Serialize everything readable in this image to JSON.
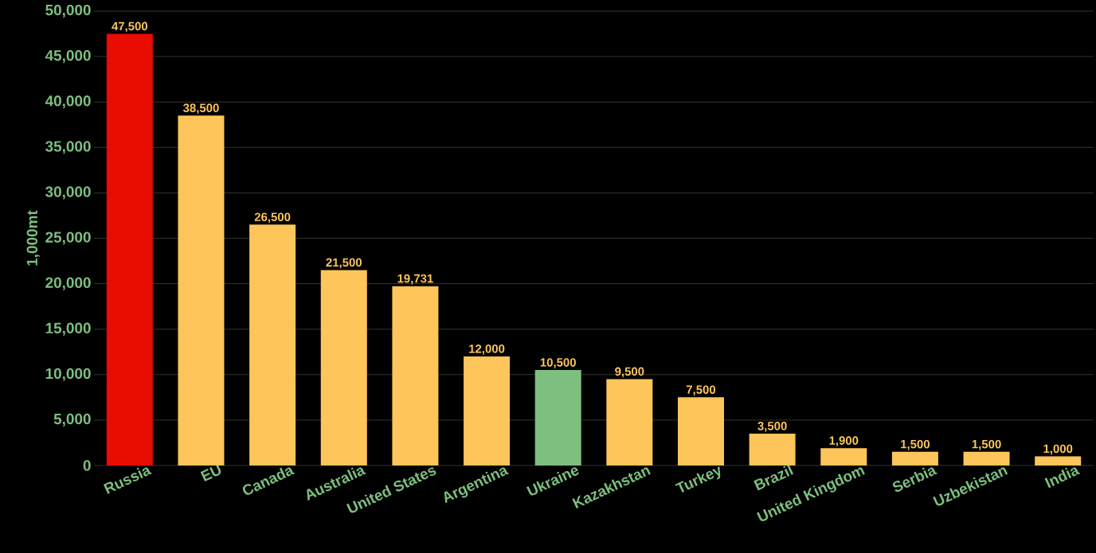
{
  "chart_data": {
    "type": "bar",
    "ylabel": "1,000mt",
    "categories": [
      "Russia",
      "EU",
      "Canada",
      "Australia",
      "United States",
      "Argentina",
      "Ukraine",
      "Kazakhstan",
      "Turkey",
      "Brazil",
      "United Kingdom",
      "Serbia",
      "Uzbekistan",
      "India"
    ],
    "values": [
      47500,
      38500,
      26500,
      21500,
      19731,
      12000,
      10500,
      9500,
      7500,
      3500,
      1900,
      1500,
      1500,
      1000
    ],
    "value_labels": [
      "47,500",
      "38,500",
      "26,500",
      "21,500",
      "19,731",
      "12,000",
      "10,500",
      "9,500",
      "7,500",
      "3,500",
      "1,900",
      "1,500",
      "1,500",
      "1,000"
    ],
    "colors": [
      "#e90c00",
      "#fec55a",
      "#fec55a",
      "#fec55a",
      "#fec55a",
      "#fec55a",
      "#7dbf7f",
      "#fec55a",
      "#fec55a",
      "#fec55a",
      "#fec55a",
      "#fec55a",
      "#fec55a",
      "#fec55a"
    ],
    "ylim": [
      0,
      50000
    ],
    "yticks": [
      0,
      {
        "value": 5000,
        "label": "5,000"
      },
      {
        "value": 10000,
        "label": "10,000"
      },
      {
        "value": 15000,
        "label": "15,000"
      },
      {
        "value": 20000,
        "label": "20,000"
      },
      {
        "value": 25000,
        "label": "25,000"
      },
      {
        "value": 30000,
        "label": "30,000"
      },
      {
        "value": 35000,
        "label": "35,000"
      },
      {
        "value": 40000,
        "label": "40,000"
      },
      {
        "value": 45000,
        "label": "45,000"
      },
      {
        "value": 50000,
        "label": "50,000"
      }
    ],
    "grid": "y"
  }
}
